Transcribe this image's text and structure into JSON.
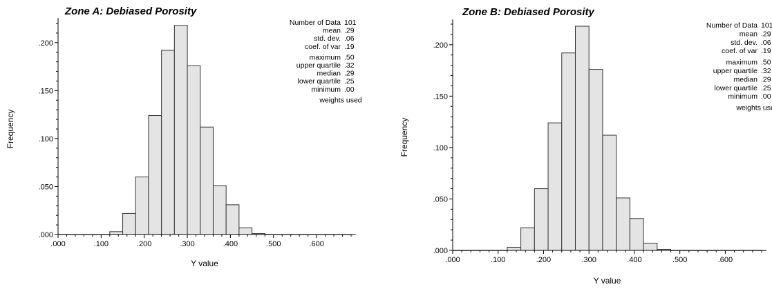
{
  "chart_data": [
    {
      "type": "bar",
      "title": "Zone A: Debiased Porosity",
      "xlabel": "Y value",
      "ylabel": "Frequency",
      "xlim": [
        0.0,
        0.68
      ],
      "ylim": [
        0.0,
        0.22
      ],
      "x_ticks": [
        ".000",
        ".100",
        ".200",
        ".300",
        ".400",
        ".500",
        ".600"
      ],
      "y_ticks": [
        ".000",
        ".050",
        ".100",
        ".150",
        ".200"
      ],
      "bin_width": 0.03,
      "bin_starts": [
        0.0,
        0.03,
        0.06,
        0.09,
        0.12,
        0.15,
        0.18,
        0.21,
        0.24,
        0.27,
        0.3,
        0.33,
        0.36,
        0.39,
        0.42,
        0.45,
        0.48,
        0.51,
        0.54,
        0.57,
        0.6,
        0.63,
        0.66
      ],
      "values": [
        0.0,
        0.0,
        0.0,
        0.0,
        0.003,
        0.022,
        0.06,
        0.124,
        0.192,
        0.218,
        0.176,
        0.112,
        0.051,
        0.031,
        0.007,
        0.001,
        0.0,
        0.0,
        0.0,
        0.0,
        0.0,
        0.0,
        0.0
      ],
      "grid": false,
      "stats": [
        {
          "label": "Number of Data",
          "value": "101"
        },
        {
          "label": "mean",
          "value": ".29"
        },
        {
          "label": "std. dev.",
          "value": ".06"
        },
        {
          "label": "coef. of var",
          "value": ".19"
        },
        {
          "label": "maximum",
          "value": ".50"
        },
        {
          "label": "upper quartile",
          "value": ".32"
        },
        {
          "label": "median",
          "value": ".29"
        },
        {
          "label": "lower quartile",
          "value": ".25"
        },
        {
          "label": "minimum",
          "value": ".00"
        },
        {
          "label": "weights used",
          "value": ""
        }
      ]
    },
    {
      "type": "bar",
      "title": "Zone B: Debiased Porosity",
      "xlabel": "Y value",
      "ylabel": "Frequency",
      "xlim": [
        0.0,
        0.68
      ],
      "ylim": [
        0.0,
        0.22
      ],
      "x_ticks": [
        ".000",
        ".100",
        ".200",
        ".300",
        ".400",
        ".500",
        ".600"
      ],
      "y_ticks": [
        ".000",
        ".050",
        ".100",
        ".150",
        ".200"
      ],
      "bin_width": 0.03,
      "bin_starts": [
        0.0,
        0.03,
        0.06,
        0.09,
        0.12,
        0.15,
        0.18,
        0.21,
        0.24,
        0.27,
        0.3,
        0.33,
        0.36,
        0.39,
        0.42,
        0.45,
        0.48,
        0.51,
        0.54,
        0.57,
        0.6,
        0.63,
        0.66
      ],
      "values": [
        0.0,
        0.0,
        0.0,
        0.0,
        0.003,
        0.022,
        0.06,
        0.124,
        0.192,
        0.218,
        0.176,
        0.112,
        0.051,
        0.031,
        0.007,
        0.001,
        0.0,
        0.0,
        0.0,
        0.0,
        0.0,
        0.0,
        0.0
      ],
      "grid": false,
      "stats": [
        {
          "label": "Number of Data",
          "value": "101"
        },
        {
          "label": "mean",
          "value": ".29"
        },
        {
          "label": "std. dev.",
          "value": ".06"
        },
        {
          "label": "coef. of var",
          "value": ".19"
        },
        {
          "label": "maximum",
          "value": ".50"
        },
        {
          "label": "upper quartile",
          "value": ".32"
        },
        {
          "label": "median",
          "value": ".29"
        },
        {
          "label": "lower quartile",
          "value": ".25"
        },
        {
          "label": "minimum",
          "value": ".00"
        },
        {
          "label": "weights used",
          "value": ""
        }
      ]
    }
  ]
}
